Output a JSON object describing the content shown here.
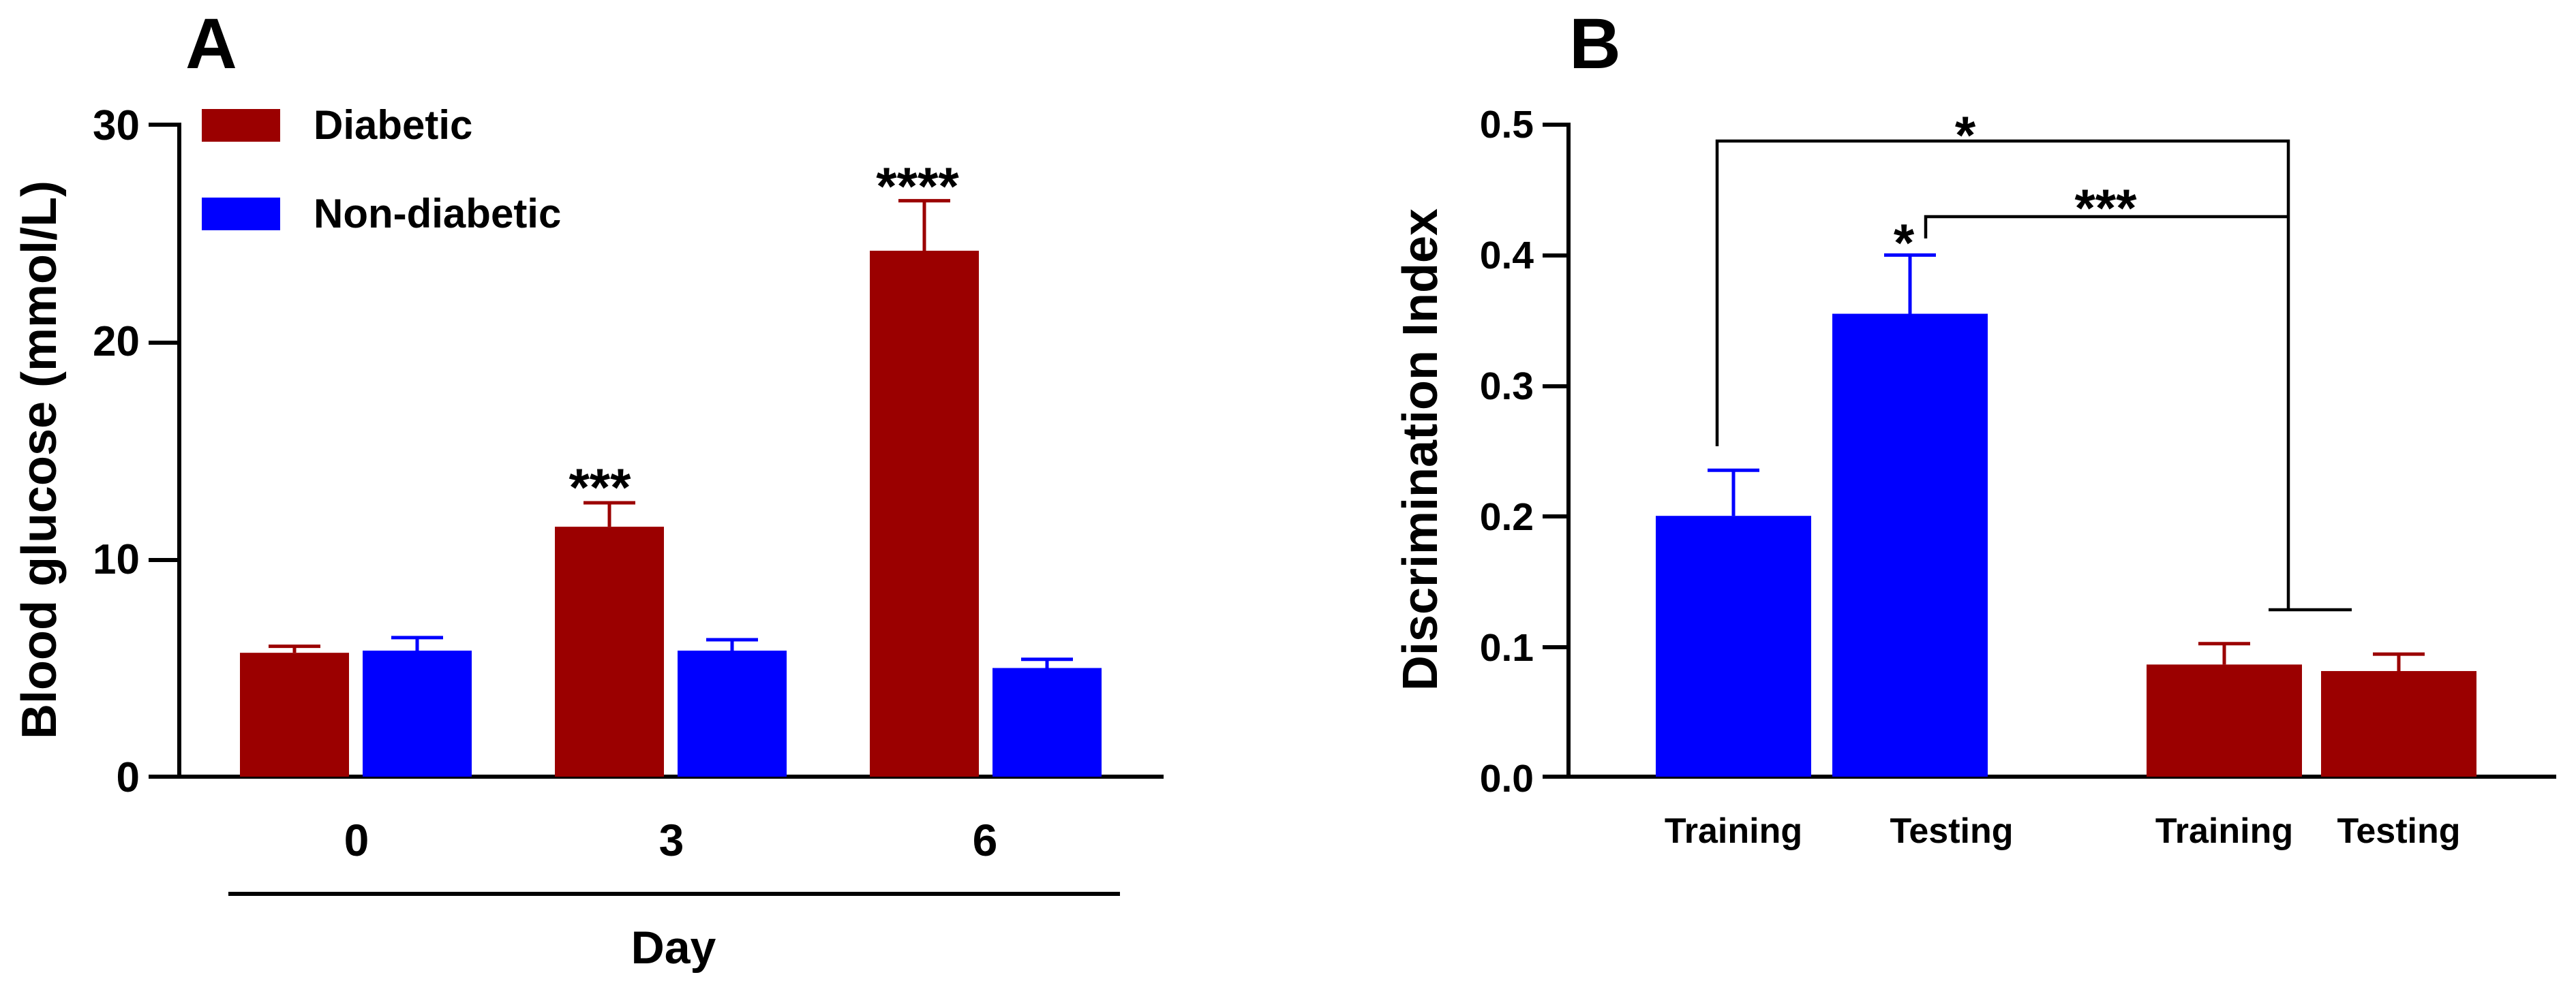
{
  "colors": {
    "diabetic": "#9b0000",
    "non_diabetic": "#0000ff"
  },
  "chart_data": [
    {
      "panel": "A",
      "type": "bar",
      "ylabel": "Blood glucose (mmol/L)",
      "xlabel": "Day",
      "ylim": [
        0,
        30
      ],
      "yticks": [
        "0",
        "10",
        "20",
        "30"
      ],
      "categories": [
        "0",
        "3",
        "6"
      ],
      "legend_position": "top-left",
      "series": [
        {
          "name": "Diabetic",
          "color": "#9b0000",
          "values": [
            5.7,
            11.5,
            24.2
          ],
          "errors": [
            0.3,
            1.1,
            2.3
          ]
        },
        {
          "name": "Non-diabetic",
          "color": "#0000ff",
          "values": [
            5.8,
            5.8,
            5.0
          ],
          "errors": [
            0.6,
            0.5,
            0.4
          ]
        }
      ],
      "annotations": [
        {
          "category": "3",
          "series": "Diabetic",
          "text": "***"
        },
        {
          "category": "6",
          "series": "Diabetic",
          "text": "****"
        }
      ]
    },
    {
      "panel": "B",
      "type": "bar",
      "ylabel": "Discrimination Index",
      "xlabel": "",
      "ylim": [
        0,
        0.5
      ],
      "yticks": [
        "0.0",
        "0.1",
        "0.2",
        "0.3",
        "0.4",
        "0.5"
      ],
      "bars": [
        {
          "label": "Training",
          "group": "Non-diabetic",
          "color": "#0000ff",
          "value": 0.2,
          "error": 0.035
        },
        {
          "label": "Testing",
          "group": "Non-diabetic",
          "color": "#0000ff",
          "value": 0.355,
          "error": 0.045
        },
        {
          "label": "Training",
          "group": "Diabetic",
          "color": "#9b0000",
          "value": 0.086,
          "error": 0.016
        },
        {
          "label": "Testing",
          "group": "Diabetic",
          "color": "#9b0000",
          "value": 0.081,
          "error": 0.013
        }
      ],
      "annotations": [
        {
          "text": "*",
          "note": "Non-diabetic Testing vs Training"
        },
        {
          "text": "*",
          "note": "Non-diabetic Training vs Diabetic"
        },
        {
          "text": "***",
          "note": "Non-diabetic Testing vs Diabetic"
        }
      ]
    }
  ]
}
